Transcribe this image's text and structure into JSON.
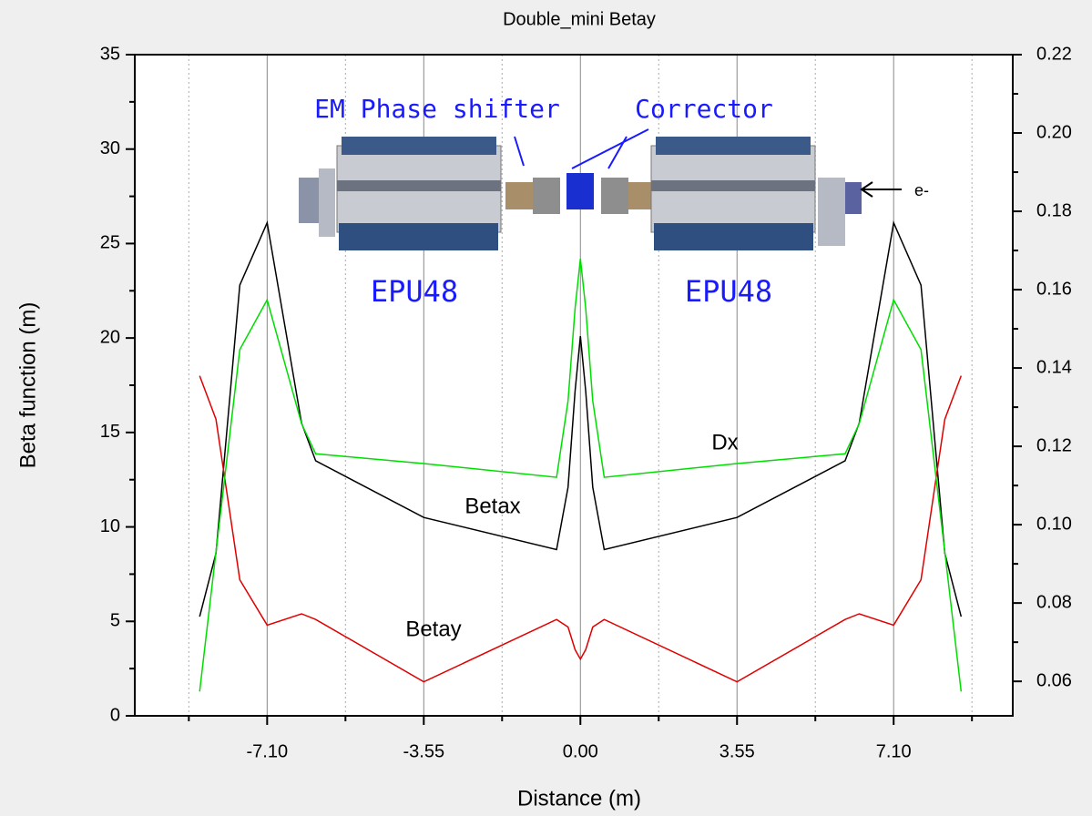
{
  "chart_data": {
    "type": "line",
    "title": "Double_mini Betay",
    "xlabel": "Distance (m)",
    "ylabel": "Beta function (m)",
    "x": [
      -8.63,
      -8.26,
      -7.72,
      -7.1,
      -6.32,
      -6.0,
      -3.55,
      -0.54,
      -0.28,
      -0.12,
      0,
      0.12,
      0.28,
      0.54,
      3.55,
      6.0,
      6.32,
      7.1,
      7.72,
      8.26,
      8.63
    ],
    "series": [
      {
        "name": "Betax",
        "color": "#000000",
        "values": [
          5.25,
          8.6,
          22.8,
          26.1,
          15.5,
          13.5,
          10.5,
          8.8,
          12.1,
          17.2,
          20.1,
          17.2,
          12.1,
          8.8,
          10.5,
          13.5,
          15.5,
          26.1,
          22.8,
          8.6,
          5.25
        ]
      },
      {
        "name": "Betay",
        "color": "#e00000",
        "values": [
          18.0,
          15.7,
          7.2,
          4.8,
          5.4,
          5.1,
          1.8,
          5.1,
          4.7,
          3.5,
          3.0,
          3.5,
          4.7,
          5.1,
          1.8,
          5.1,
          5.4,
          4.8,
          7.2,
          15.7,
          18.0
        ]
      },
      {
        "name": "Dx",
        "color": "#00dd00",
        "axis": "y2",
        "values": [
          0.0574,
          0.093,
          0.1447,
          0.1574,
          0.1258,
          0.1181,
          0.1156,
          0.1121,
          0.1316,
          0.1553,
          0.1679,
          0.1553,
          0.1316,
          0.1121,
          0.1156,
          0.1181,
          0.1258,
          0.1574,
          0.1447,
          0.093,
          0.0574
        ]
      }
    ],
    "xlim": [
      -10.1,
      9.8
    ],
    "xticks": [
      {
        "value": -7.1,
        "label": "-7.10"
      },
      {
        "value": -3.55,
        "label": "-3.55"
      },
      {
        "value": 0,
        "label": "0.00"
      },
      {
        "value": 3.55,
        "label": "3.55"
      },
      {
        "value": 7.1,
        "label": "7.10"
      }
    ],
    "xminor_ticks": [
      -8.875,
      -5.325,
      -1.775,
      1.775,
      5.325,
      8.875
    ],
    "ylim": [
      0,
      35
    ],
    "yticks": [
      0,
      5,
      10,
      15,
      20,
      25,
      30,
      35
    ],
    "yminor_ticks": [
      2.5,
      7.5,
      12.5,
      17.5,
      22.5,
      27.5,
      32.5
    ],
    "y2lim": [
      0.0512,
      0.22
    ],
    "y2ticks": [
      0.06,
      0.08,
      {
        "value": 0.1,
        "label": "0.10"
      },
      0.12,
      0.14,
      0.16,
      0.18,
      {
        "value": 0.2,
        "label": "0.20"
      },
      0.22
    ],
    "y2minor_ticks": [
      0.07,
      0.09,
      0.11,
      0.13,
      0.15,
      0.17,
      0.19,
      0.21
    ],
    "annotations": [
      "Betax",
      "Betay",
      "Dx",
      "EM Phase shifter",
      "Corrector",
      "EPU48",
      "EPU48",
      "e-"
    ]
  }
}
